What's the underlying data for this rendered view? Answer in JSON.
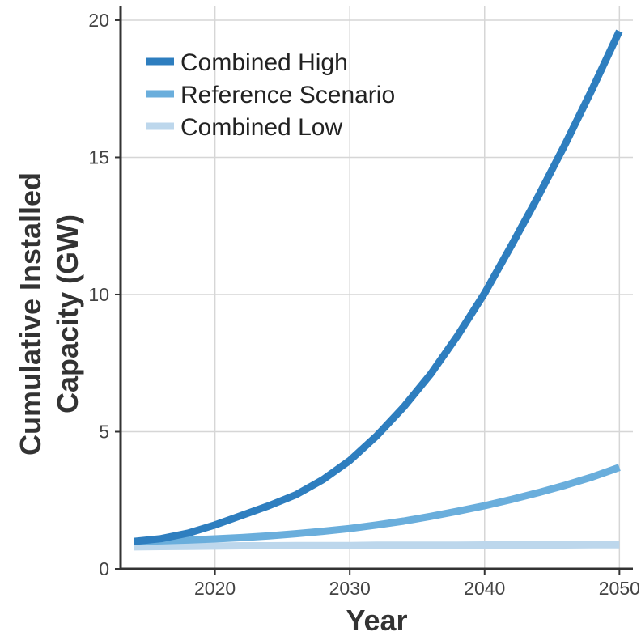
{
  "chart_data": {
    "type": "line",
    "xlabel": "Year",
    "ylabel": "Cumulative Installed Capacity (GW)",
    "ylabel_lines": [
      "Cumulative Installed",
      "Capacity (GW)"
    ],
    "xlim": [
      2013,
      2051
    ],
    "ylim": [
      0,
      20.5
    ],
    "x_ticks": [
      2020,
      2030,
      2040,
      2050
    ],
    "x_tick_labels": [
      "2020",
      "2030",
      "2040",
      "2050"
    ],
    "y_ticks": [
      0,
      5,
      10,
      15,
      20
    ],
    "y_tick_labels": [
      "0",
      "5",
      "10",
      "15",
      "20"
    ],
    "grid": true,
    "legend_position": "top-left",
    "x": [
      2014,
      2016,
      2018,
      2020,
      2022,
      2024,
      2026,
      2028,
      2030,
      2032,
      2034,
      2036,
      2038,
      2040,
      2042,
      2044,
      2046,
      2048,
      2050
    ],
    "series": [
      {
        "name": "Combined High",
        "color": "#2e7ebf",
        "values": [
          1.0,
          1.1,
          1.3,
          1.6,
          1.95,
          2.3,
          2.7,
          3.25,
          3.95,
          4.85,
          5.9,
          7.1,
          8.5,
          10.05,
          11.8,
          13.6,
          15.5,
          17.5,
          19.6
        ]
      },
      {
        "name": "Reference Scenario",
        "color": "#6aaedc",
        "values": [
          1.0,
          1.02,
          1.05,
          1.09,
          1.14,
          1.2,
          1.28,
          1.37,
          1.47,
          1.6,
          1.74,
          1.91,
          2.1,
          2.3,
          2.53,
          2.78,
          3.05,
          3.35,
          3.7
        ]
      },
      {
        "name": "Combined Low",
        "color": "#bdd7ec",
        "values": [
          0.8,
          0.81,
          0.82,
          0.83,
          0.84,
          0.84,
          0.85,
          0.85,
          0.85,
          0.86,
          0.86,
          0.86,
          0.86,
          0.87,
          0.87,
          0.87,
          0.87,
          0.88,
          0.88
        ]
      }
    ]
  }
}
